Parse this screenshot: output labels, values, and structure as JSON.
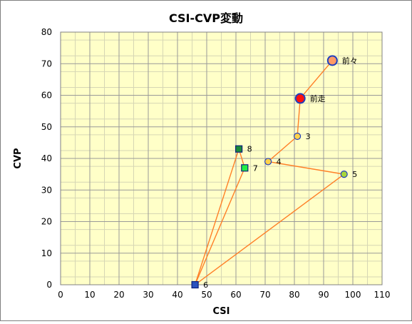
{
  "chart_data": {
    "type": "scatter",
    "title": "CSI-CVP変動",
    "xlabel": "CSI",
    "ylabel": "CVP",
    "xlim": [
      0,
      110
    ],
    "ylim": [
      0,
      80
    ],
    "x_ticks": [
      0,
      10,
      20,
      30,
      40,
      50,
      60,
      70,
      80,
      90,
      100,
      110
    ],
    "y_ticks": [
      0,
      10,
      20,
      30,
      40,
      50,
      60,
      70,
      80
    ],
    "grid": true,
    "legend": "none",
    "colors": {
      "plot_background": "#ffffc8",
      "grid_major": "#999999",
      "grid_minor": "#d6d6b4",
      "line": "#ff7f27"
    },
    "points": [
      {
        "label": "前々",
        "x": 93,
        "y": 71,
        "shape": "circle",
        "fill": "#ff9a66",
        "stroke": "#1f3fbf",
        "size": "large"
      },
      {
        "label": "前走",
        "x": 82,
        "y": 59,
        "shape": "circle",
        "fill": "#ff1010",
        "stroke": "#1f3fbf",
        "size": "large"
      },
      {
        "label": "3",
        "x": 81,
        "y": 47,
        "shape": "circle",
        "fill": "#ffd24a",
        "stroke": "#1f3fbf",
        "size": "small"
      },
      {
        "label": "4",
        "x": 71,
        "y": 39,
        "shape": "circle",
        "fill": "#ffd24a",
        "stroke": "#1f3fbf",
        "size": "small"
      },
      {
        "label": "5",
        "x": 97,
        "y": 35,
        "shape": "circle",
        "fill": "#a8d63a",
        "stroke": "#1f3fbf",
        "size": "small"
      },
      {
        "label": "6",
        "x": 46,
        "y": 0,
        "shape": "square",
        "fill": "#2a52be",
        "stroke": "#0c1f7a",
        "size": "small"
      },
      {
        "label": "7",
        "x": 63,
        "y": 37,
        "shape": "square",
        "fill": "#22ee44",
        "stroke": "#0c1f7a",
        "size": "small"
      },
      {
        "label": "8",
        "x": 61,
        "y": 43,
        "shape": "square",
        "fill": "#1a8a3a",
        "stroke": "#0c1f7a",
        "size": "small"
      }
    ],
    "path_order": [
      "前々",
      "前走",
      "3",
      "4",
      "5",
      "6",
      "7",
      "8",
      "6"
    ]
  }
}
